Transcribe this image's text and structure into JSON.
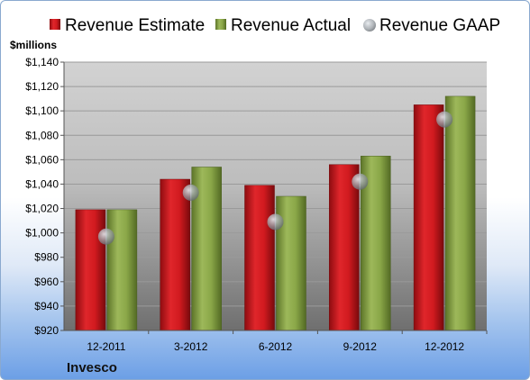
{
  "chart_data": {
    "type": "bar",
    "unit_label": "$millions",
    "company": "Invesco",
    "categories": [
      "12-2011",
      "3-2012",
      "6-2012",
      "9-2012",
      "12-2012"
    ],
    "series": [
      {
        "name": "Revenue Estimate",
        "kind": "bar",
        "color": "#c8151b",
        "values": [
          1019,
          1044,
          1039,
          1056,
          1105
        ]
      },
      {
        "name": "Revenue Actual",
        "kind": "bar",
        "color": "#7f9b3c",
        "values": [
          1019,
          1054,
          1030,
          1063,
          1112
        ]
      },
      {
        "name": "Revenue GAAP",
        "kind": "marker",
        "color": "#9aa0a6",
        "values": [
          997,
          1033,
          1009,
          1042,
          1093
        ]
      }
    ],
    "ylim": [
      920,
      1140
    ],
    "ytick_step": 20,
    "y_tick_labels": [
      "$920",
      "$940",
      "$960",
      "$980",
      "$1,000",
      "$1,020",
      "$1,040",
      "$1,060",
      "$1,080",
      "$1,100",
      "$1,120",
      "$1,140"
    ],
    "grid": true,
    "legend_position": "top"
  }
}
